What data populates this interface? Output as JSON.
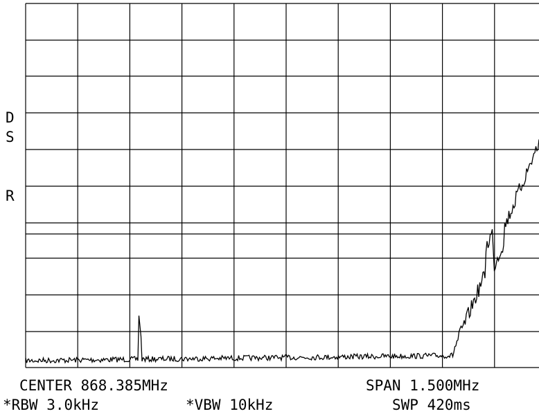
{
  "screen": {
    "side_labels": [
      "D",
      "S",
      "R"
    ],
    "footer": {
      "center": "CENTER 868.385MHz",
      "span": "SPAN 1.500MHz",
      "rbw": "*RBW 3.0kHz",
      "vbw": "*VBW 10kHz",
      "sweep": "SWP 420ms"
    }
  }
}
